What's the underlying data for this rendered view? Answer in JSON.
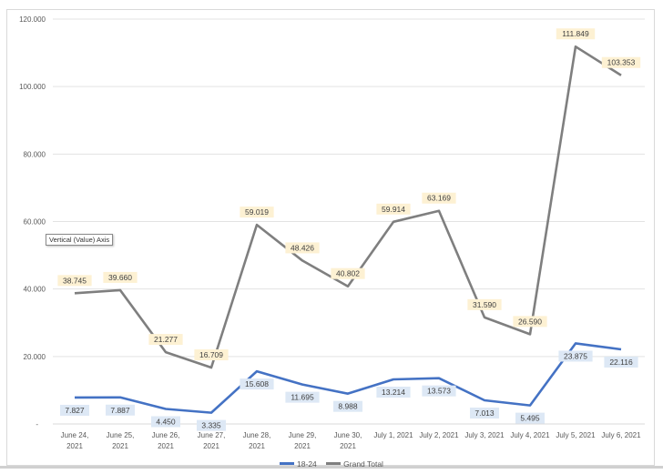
{
  "chart_data": {
    "type": "line",
    "title": "",
    "xlabel": "",
    "ylabel": "",
    "ylim": [
      0,
      120000
    ],
    "y_ticks": [
      "-",
      "20.000",
      "40.000",
      "60.000",
      "80.000",
      "100.000",
      "120.000"
    ],
    "grid": true,
    "legend_position": "bottom",
    "categories": [
      [
        "June 24,",
        "2021"
      ],
      [
        "June 25,",
        "2021"
      ],
      [
        "June 26,",
        "2021"
      ],
      [
        "June 27,",
        "2021"
      ],
      [
        "June 28,",
        "2021"
      ],
      [
        "June 29,",
        "2021"
      ],
      [
        "June 30,",
        "2021"
      ],
      [
        "July 1, 2021"
      ],
      [
        "July 2, 2021"
      ],
      [
        "July 3, 2021"
      ],
      [
        "July 4, 2021"
      ],
      [
        "July 5, 2021"
      ],
      [
        "July 6, 2021"
      ]
    ],
    "series": [
      {
        "name": "18-24",
        "color": "#4472c4",
        "label_bg": "#dde8f5",
        "values": [
          7827,
          7887,
          4450,
          3335,
          15608,
          11695,
          8988,
          13214,
          13573,
          7013,
          5495,
          23875,
          22116
        ],
        "labels": [
          "7.827",
          "7.887",
          "4.450",
          "3.335",
          "15.608",
          "11.695",
          "8.988",
          "13.214",
          "13.573",
          "7.013",
          "5.495",
          "23.875",
          "22.116"
        ]
      },
      {
        "name": "Grand Total",
        "color": "#7f7f7f",
        "label_bg": "#fdf1d3",
        "values": [
          38745,
          39660,
          21277,
          16709,
          59019,
          48426,
          40802,
          59914,
          63169,
          31590,
          26590,
          111849,
          103353
        ],
        "labels": [
          "38.745",
          "39.660",
          "21.277",
          "16.709",
          "59.019",
          "48.426",
          "40.802",
          "59.914",
          "63.169",
          "31.590",
          "26.590",
          "111.849",
          "103.353"
        ]
      }
    ]
  },
  "tooltip": "Vertical (Value) Axis"
}
